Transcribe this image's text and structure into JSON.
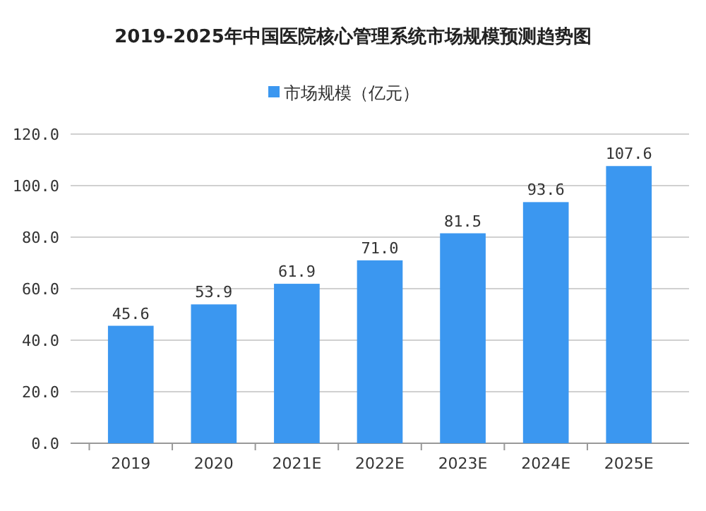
{
  "chart_data": {
    "type": "bar",
    "title": "2019-2025年中国医院核心管理系统市场规模预测趋势图",
    "categories": [
      "2019",
      "2020",
      "2021E",
      "2022E",
      "2023E",
      "2024E",
      "2025E"
    ],
    "series": [
      {
        "name": "市场规模（亿元）",
        "color": "#3b97f0",
        "values": [
          45.6,
          53.9,
          61.9,
          71.0,
          81.5,
          93.6,
          107.6
        ]
      }
    ],
    "value_labels": [
      "45.6",
      "53.9",
      "61.9",
      "71.0",
      "81.5",
      "93.6",
      "107.6"
    ],
    "ylim": [
      0,
      120
    ],
    "yticks": [
      {
        "value": 0,
        "label": "0.0"
      },
      {
        "value": 20,
        "label": "20.0"
      },
      {
        "value": 40,
        "label": "40.0"
      },
      {
        "value": 60,
        "label": "60.0"
      },
      {
        "value": 80,
        "label": "80.0"
      },
      {
        "value": 100,
        "label": "100.0"
      },
      {
        "value": 120,
        "label": "120.0"
      }
    ],
    "grid": "y",
    "legend": "top"
  }
}
